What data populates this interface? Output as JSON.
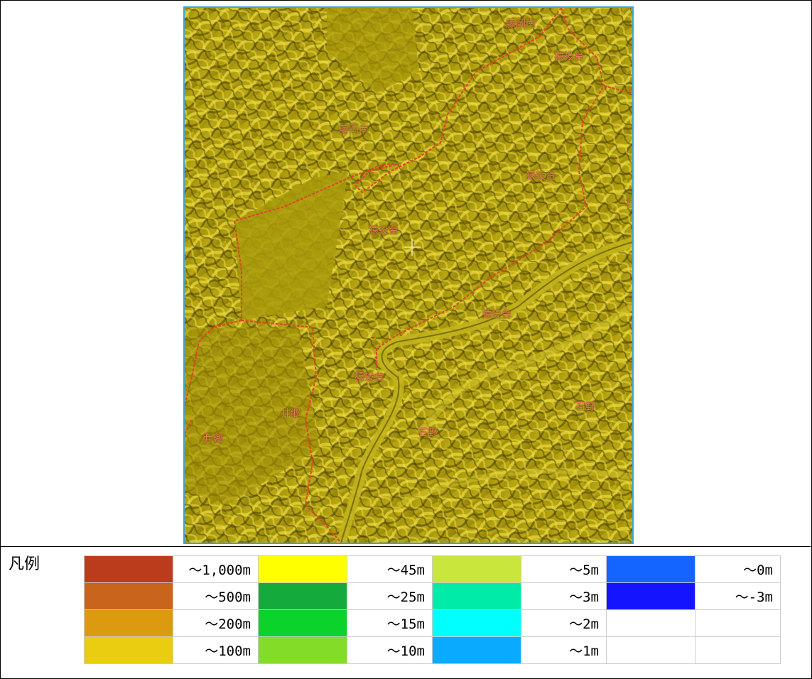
{
  "map": {
    "places": [
      {
        "text": "藤岡南",
        "id": "p1"
      },
      {
        "text": "猿投台",
        "id": "p2"
      },
      {
        "text": "藤岡南",
        "id": "p3"
      },
      {
        "text": "猿投台",
        "id": "p4"
      },
      {
        "text": "猿投台",
        "id": "p5"
      },
      {
        "text": "猿投台",
        "id": "p6"
      },
      {
        "text": "猿投台",
        "id": "p7"
      },
      {
        "text": "石野",
        "id": "p8"
      },
      {
        "text": "井郷",
        "id": "p9"
      },
      {
        "text": "井郷",
        "id": "p10"
      },
      {
        "text": "石野",
        "id": "p11"
      },
      {
        "text": "石",
        "id": "p12"
      }
    ]
  },
  "legend": {
    "title": "凡例",
    "rows": [
      [
        {
          "color": "#ba3c1c",
          "label": "～1,000m"
        },
        {
          "color": "#ffff00",
          "label": "～45m"
        },
        {
          "color": "#c8e63c",
          "label": "～5m"
        },
        {
          "color": "#1464ff",
          "label": "～0m"
        }
      ],
      [
        {
          "color": "#c8641c",
          "label": "～500m"
        },
        {
          "color": "#14aa3c",
          "label": "～25m"
        },
        {
          "color": "#00eaa8",
          "label": "～3m"
        },
        {
          "color": "#1414ff",
          "label": "～-3m"
        }
      ],
      [
        {
          "color": "#dc9a10",
          "label": "～200m"
        },
        {
          "color": "#0cd22c",
          "label": "～15m"
        },
        {
          "color": "#00ffff",
          "label": "～2m"
        },
        {
          "color": "",
          "label": ""
        }
      ],
      [
        {
          "color": "#eacc10",
          "label": "～100m"
        },
        {
          "color": "#82dc28",
          "label": "～10m"
        },
        {
          "color": "#0aaaff",
          "label": "～1m"
        },
        {
          "color": "",
          "label": ""
        }
      ]
    ]
  }
}
